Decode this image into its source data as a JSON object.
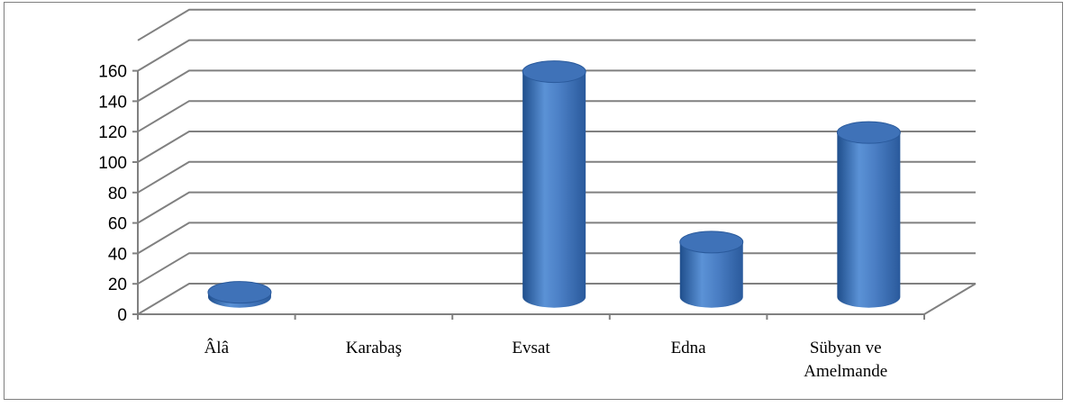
{
  "chart_data": {
    "type": "bar",
    "style": "3d-cylinder",
    "title": "",
    "xlabel": "",
    "ylabel": "",
    "categories": [
      "Âlâ",
      "Karabaş",
      "Evsat",
      "Edna",
      "Sübyan ve Amelmande"
    ],
    "values": [
      3,
      0,
      148,
      36,
      108
    ],
    "ylim": [
      0,
      160
    ],
    "yticks": [
      "0",
      "20",
      "40",
      "60",
      "80",
      "100",
      "120",
      "140",
      "160"
    ],
    "grid": true,
    "legend": "none",
    "colors": {
      "bar": "#4a7ec4",
      "bar_dark": "#1f4e8c",
      "bar_top": "#3f72b8",
      "grid": "#808080",
      "frame": "#7f7f7f"
    }
  }
}
